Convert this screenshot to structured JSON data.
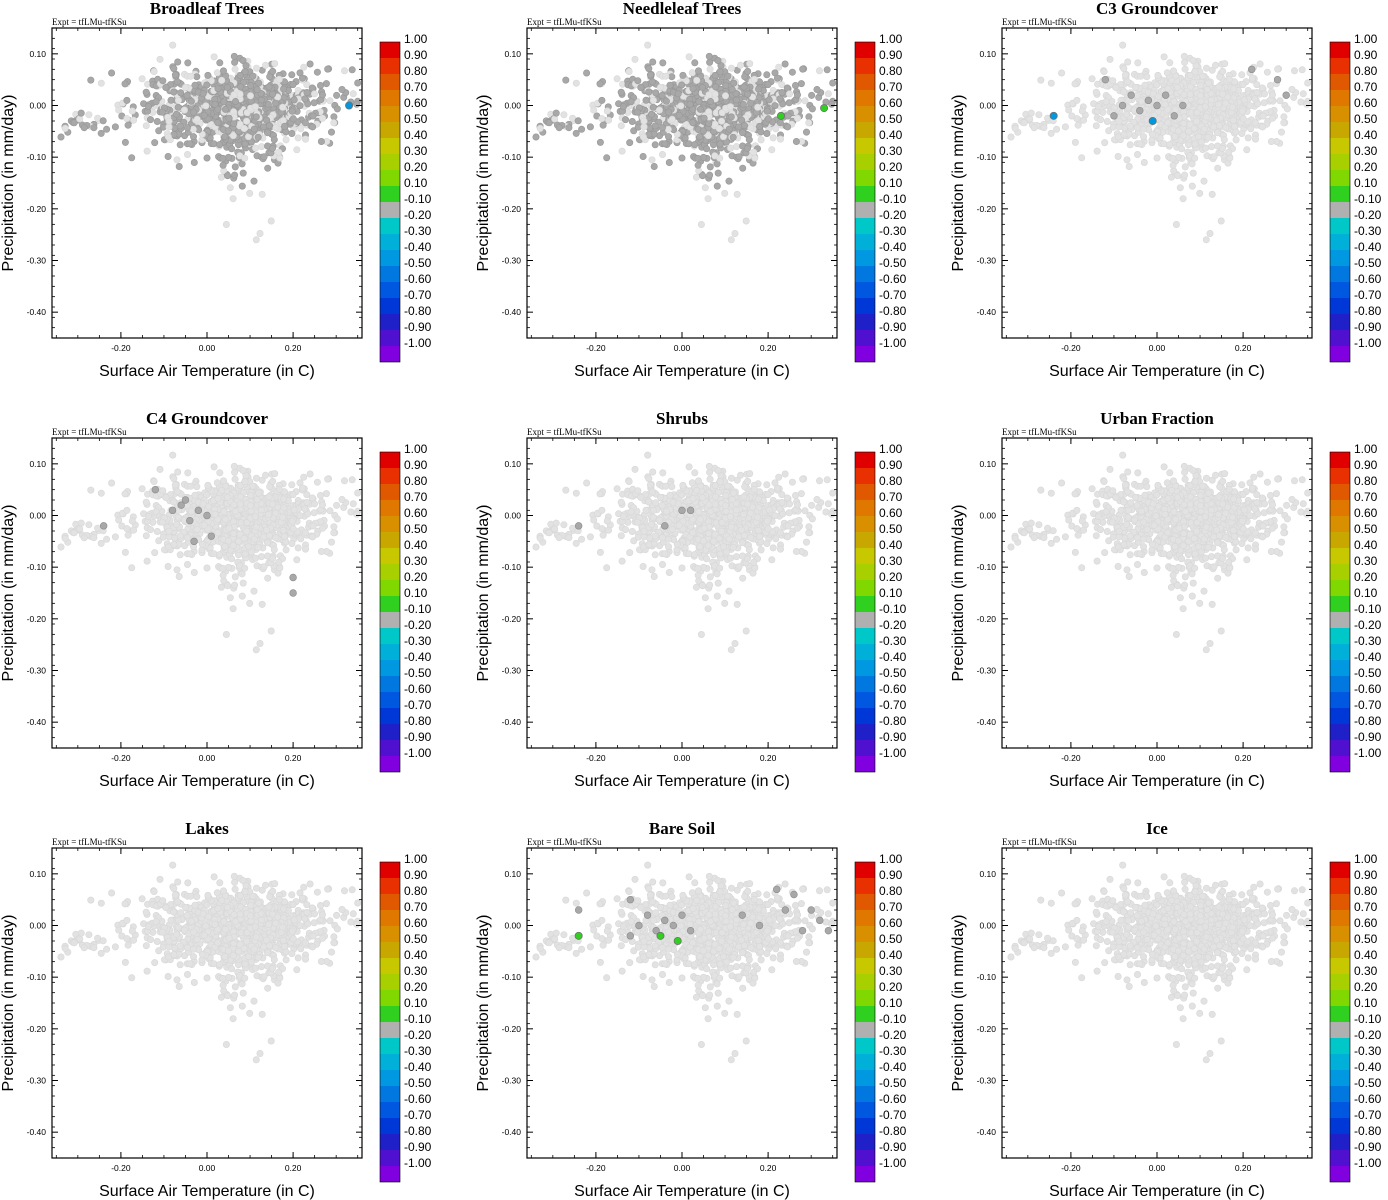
{
  "figure": {
    "expt_label": "Expt = tfLMu-tfKSu",
    "xlabel": "Surface Air Temperature (in C)",
    "ylabel": "Precipitation (in mm/day)",
    "x_ticks": [
      "-0.20",
      "0.00",
      "0.20"
    ],
    "y_ticks": [
      "0.10",
      "0.00",
      "-0.10",
      "-0.20",
      "-0.30",
      "-0.40"
    ]
  },
  "chart_data": {
    "type": "scatter",
    "xlim": [
      -0.36,
      0.36
    ],
    "ylim": [
      -0.45,
      0.15
    ],
    "x_tick_values": [
      -0.2,
      0.0,
      0.2
    ],
    "y_tick_values": [
      0.1,
      0.0,
      -0.1,
      -0.2,
      -0.3,
      -0.4
    ],
    "grid": false,
    "background_point_color": "#e2e2e2",
    "neutral_point_color": "#a8a8a8",
    "panels": [
      {
        "title": "Broadleaf Trees",
        "xlabel": "Surface Air Temperature (in C)",
        "ylabel": "Precipitation (in mm/day)",
        "neutral_coverage": "most",
        "highlighted_points": [
          {
            "x": 0.33,
            "y": 0.0,
            "value": -0.2
          }
        ]
      },
      {
        "title": "Needleleaf Trees",
        "xlabel": "Surface Air Temperature (in C)",
        "ylabel": "Precipitation (in mm/day)",
        "neutral_coverage": "most",
        "highlighted_points": [
          {
            "x": 0.23,
            "y": -0.02,
            "value": 0.15
          },
          {
            "x": 0.33,
            "y": -0.005,
            "value": 0.15
          }
        ]
      },
      {
        "title": "C3 Groundcover",
        "xlabel": "Surface Air Temperature (in C)",
        "ylabel": "Precipitation (in mm/day)",
        "neutral_coverage": "cluster",
        "neutral_points": [
          {
            "x": -0.12,
            "y": 0.05
          },
          {
            "x": -0.08,
            "y": 0.0
          },
          {
            "x": -0.06,
            "y": 0.02
          },
          {
            "x": -0.04,
            "y": -0.01
          },
          {
            "x": -0.02,
            "y": 0.01
          },
          {
            "x": 0.0,
            "y": 0.0
          },
          {
            "x": 0.02,
            "y": 0.02
          },
          {
            "x": 0.04,
            "y": -0.02
          },
          {
            "x": -0.1,
            "y": -0.02
          },
          {
            "x": 0.06,
            "y": 0.0
          },
          {
            "x": 0.28,
            "y": 0.05
          },
          {
            "x": 0.3,
            "y": 0.02
          },
          {
            "x": 0.22,
            "y": 0.07
          }
        ],
        "highlighted_points": [
          {
            "x": -0.24,
            "y": -0.02,
            "value": -0.2
          },
          {
            "x": -0.01,
            "y": -0.03,
            "value": -0.2
          }
        ]
      },
      {
        "title": "C4 Groundcover",
        "xlabel": "Surface Air Temperature (in C)",
        "ylabel": "Precipitation (in mm/day)",
        "neutral_coverage": "cluster",
        "neutral_points": [
          {
            "x": -0.24,
            "y": -0.02
          },
          {
            "x": -0.12,
            "y": 0.05
          },
          {
            "x": -0.08,
            "y": 0.01
          },
          {
            "x": -0.06,
            "y": 0.02
          },
          {
            "x": -0.04,
            "y": -0.01
          },
          {
            "x": -0.02,
            "y": 0.01
          },
          {
            "x": 0.0,
            "y": 0.0
          },
          {
            "x": 0.01,
            "y": -0.04
          },
          {
            "x": -0.03,
            "y": -0.05
          },
          {
            "x": 0.2,
            "y": -0.12
          },
          {
            "x": 0.2,
            "y": -0.15
          },
          {
            "x": -0.05,
            "y": 0.03
          }
        ],
        "highlighted_points": []
      },
      {
        "title": "Shrubs",
        "xlabel": "Surface Air Temperature (in C)",
        "ylabel": "Precipitation (in mm/day)",
        "neutral_coverage": "cluster",
        "neutral_points": [
          {
            "x": -0.24,
            "y": -0.02
          },
          {
            "x": -0.04,
            "y": -0.02
          },
          {
            "x": 0.0,
            "y": 0.01
          },
          {
            "x": 0.02,
            "y": 0.01
          }
        ],
        "highlighted_points": []
      },
      {
        "title": "Urban Fraction",
        "xlabel": "Surface Air Temperature (in C)",
        "ylabel": "Precipitation (in mm/day)",
        "neutral_coverage": "none",
        "highlighted_points": []
      },
      {
        "title": "Lakes",
        "xlabel": "Surface Air Temperature (in C)",
        "ylabel": "Precipitation (in mm/day)",
        "neutral_coverage": "none",
        "highlighted_points": []
      },
      {
        "title": "Bare Soil",
        "xlabel": "Surface Air Temperature (in C)",
        "ylabel": "Precipitation (in mm/day)",
        "neutral_coverage": "cluster",
        "neutral_points": [
          {
            "x": -0.24,
            "y": 0.03
          },
          {
            "x": -0.12,
            "y": 0.05
          },
          {
            "x": -0.1,
            "y": 0.0
          },
          {
            "x": -0.08,
            "y": 0.02
          },
          {
            "x": -0.06,
            "y": -0.01
          },
          {
            "x": -0.04,
            "y": 0.01
          },
          {
            "x": -0.02,
            "y": 0.0
          },
          {
            "x": 0.0,
            "y": 0.02
          },
          {
            "x": 0.02,
            "y": -0.01
          },
          {
            "x": -0.12,
            "y": -0.02
          },
          {
            "x": 0.14,
            "y": 0.02
          },
          {
            "x": 0.18,
            "y": 0.0
          },
          {
            "x": 0.22,
            "y": 0.07
          },
          {
            "x": 0.26,
            "y": 0.06
          },
          {
            "x": 0.28,
            "y": -0.01
          },
          {
            "x": 0.3,
            "y": 0.03
          },
          {
            "x": 0.32,
            "y": 0.01
          },
          {
            "x": 0.34,
            "y": -0.01
          },
          {
            "x": 0.24,
            "y": 0.03
          }
        ],
        "highlighted_points": [
          {
            "x": -0.24,
            "y": -0.02,
            "value": 0.15
          },
          {
            "x": -0.05,
            "y": -0.02,
            "value": 0.15
          },
          {
            "x": -0.01,
            "y": -0.03,
            "value": 0.15
          }
        ]
      },
      {
        "title": "Ice",
        "xlabel": "Surface Air Temperature (in C)",
        "ylabel": "Precipitation (in mm/day)",
        "neutral_coverage": "none",
        "highlighted_points": []
      }
    ],
    "colorbar": {
      "labels": [
        "1.00",
        "0.90",
        "0.80",
        "0.70",
        "0.60",
        "0.50",
        "0.40",
        "0.30",
        "0.20",
        "0.10",
        "-0.10",
        "-0.20",
        "-0.30",
        "-0.40",
        "-0.50",
        "-0.60",
        "-0.70",
        "-0.80",
        "-0.90",
        "-1.00"
      ],
      "colors": [
        "#e00000",
        "#e83000",
        "#e05800",
        "#e07800",
        "#d89000",
        "#c8a800",
        "#c8c800",
        "#a8d000",
        "#80d800",
        "#30d020",
        "#b0b0b0",
        "#00c8c8",
        "#00b0d8",
        "#0098e0",
        "#0078e0",
        "#0058e0",
        "#0038d8",
        "#2020c8",
        "#5010d0",
        "#8000e0"
      ]
    }
  }
}
